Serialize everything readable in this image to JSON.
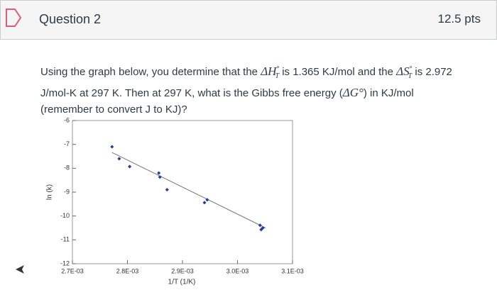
{
  "header": {
    "title": "Question 2",
    "points": "12.5 pts"
  },
  "question": {
    "parts": [
      "Using the graph below, you determine that the ",
      "ΔH",
      "°",
      "T",
      " is 1.365 KJ/mol and the ",
      "ΔS",
      "°",
      "T",
      " is 2.972 J/mol-K at 297 K.  Then at 297 K, what is the Gibbs free energy (",
      "ΔG°",
      ") in KJ/mol (remember to convert J to KJ)?"
    ]
  },
  "chart_data": {
    "type": "scatter",
    "x_label": "1/T (1/K)",
    "y_label": "ln (k)",
    "color": "#1f3fa0",
    "x": [
      0.002772,
      0.002785,
      0.002804,
      0.002857,
      0.002859,
      0.002872,
      0.00294,
      0.002945,
      0.003041,
      0.003046,
      0.003043
    ],
    "y": [
      -7.1,
      -7.6,
      -7.93,
      -8.2,
      -8.37,
      -8.9,
      -9.44,
      -9.32,
      -10.39,
      -10.5,
      -10.57
    ],
    "trendline": {
      "x": [
        0.002772,
        0.003051
      ],
      "y": [
        -7.34,
        -10.5
      ],
      "color": "#777777"
    },
    "xlim": [
      0.0027,
      0.0031
    ],
    "ylim": [
      -12,
      -6
    ],
    "xticks": [
      {
        "value": 0.0027,
        "label": "2.7E-03"
      },
      {
        "value": 0.0028,
        "label": "2.8E-03"
      },
      {
        "value": 0.0029,
        "label": "2.9E-03"
      },
      {
        "value": 0.003,
        "label": "3.0E-03"
      },
      {
        "value": 0.0031,
        "label": "3.1E-03"
      }
    ],
    "yticks": [
      -6,
      -7,
      -8,
      -9,
      -10,
      -11,
      -12
    ]
  }
}
